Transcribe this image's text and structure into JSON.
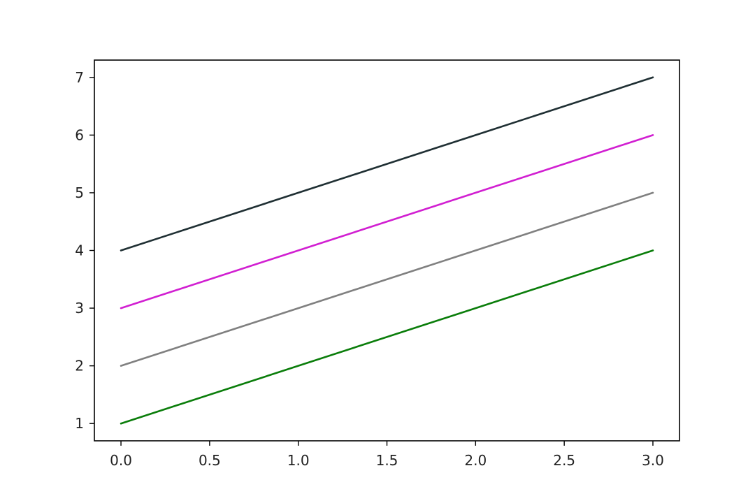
{
  "chart_data": {
    "type": "line",
    "title": "",
    "xlabel": "",
    "ylabel": "",
    "xlim": [
      -0.15,
      3.15
    ],
    "ylim": [
      0.7,
      7.3
    ],
    "grid": false,
    "legend": "none",
    "xticks": [
      0.0,
      0.5,
      1.0,
      1.5,
      2.0,
      2.5,
      3.0
    ],
    "xtick_labels": [
      "0.0",
      "0.5",
      "1.0",
      "1.5",
      "2.0",
      "2.5",
      "3.0"
    ],
    "yticks": [
      1,
      2,
      3,
      4,
      5,
      6,
      7
    ],
    "ytick_labels": [
      "1",
      "2",
      "3",
      "4",
      "5",
      "6",
      "7"
    ],
    "x": [
      0,
      1,
      2,
      3
    ],
    "series": [
      {
        "values": [
          1,
          2,
          3,
          4
        ],
        "color": "#0a7d0a"
      },
      {
        "values": [
          2,
          3,
          4,
          5
        ],
        "color": "#808080"
      },
      {
        "values": [
          3,
          4,
          5,
          6
        ],
        "color": "#d11fd1"
      },
      {
        "values": [
          4,
          5,
          6,
          7
        ],
        "color": "#1f2f33"
      }
    ]
  }
}
